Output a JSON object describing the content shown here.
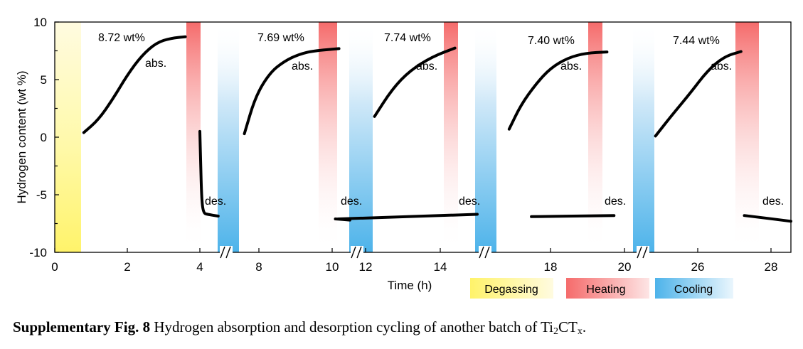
{
  "chart_data": {
    "type": "line",
    "title": "",
    "xlabel": "Time (h)",
    "ylabel": "Hydrogen content (wt %)",
    "ylim": [
      -10,
      10
    ],
    "y_ticks": [
      "10",
      "5",
      "0",
      "-5",
      "-10"
    ],
    "x_axis_segments": [
      {
        "range": [
          0,
          4.6
        ],
        "ticks": [
          "0",
          "2",
          "4"
        ]
      },
      {
        "range": [
          7.0,
          10.5
        ],
        "ticks": [
          "8",
          "10"
        ]
      },
      {
        "range": [
          11.5,
          14.5
        ],
        "ticks": [
          "12",
          "14"
        ]
      },
      {
        "range": [
          15.5,
          20.5
        ],
        "ticks": [
          "18",
          "20"
        ]
      },
      {
        "range": [
          24.5,
          28.8
        ],
        "ticks": [
          "26",
          "28"
        ]
      }
    ],
    "bands": [
      {
        "kind": "Degassing",
        "color": "#fff79a"
      },
      {
        "kind": "Heating",
        "color": "#f56b6b"
      },
      {
        "kind": "Cooling",
        "color": "#4db3ea"
      }
    ],
    "legend": [
      "Degassing",
      "Heating",
      "Cooling"
    ],
    "series": [
      {
        "name": "cycle 1 absorption",
        "x": [
          0.8,
          1.2,
          1.6,
          2.0,
          2.4,
          2.8,
          3.2,
          3.6
        ],
        "y": [
          0.4,
          1.5,
          3.3,
          5.4,
          7.1,
          8.2,
          8.6,
          8.72
        ]
      },
      {
        "name": "cycle 1 desorption",
        "x": [
          4.0,
          4.02,
          4.05,
          4.1,
          4.2,
          4.5
        ],
        "y": [
          0.5,
          -2.0,
          -5.5,
          -6.6,
          -6.7,
          -6.85
        ]
      },
      {
        "name": "cycle 2 absorption",
        "x": [
          7.6,
          7.9,
          8.3,
          8.7,
          9.1,
          9.5,
          10.2
        ],
        "y": [
          0.3,
          3.5,
          5.6,
          6.6,
          7.2,
          7.5,
          7.69
        ]
      },
      {
        "name": "cycle 2 desorption",
        "x": [
          10.1,
          10.5
        ],
        "y": [
          -7.1,
          -7.2
        ]
      },
      {
        "name": "cycle 3 absorption",
        "x": [
          12.2,
          12.6,
          13.0,
          13.5,
          14.0
        ],
        "y": [
          1.8,
          4.2,
          5.8,
          7.0,
          7.74
        ]
      },
      {
        "name": "cycle 3 desorption",
        "x": [
          14.5,
          15.2
        ],
        "y": [
          -6.7,
          -7.1
        ]
      },
      {
        "name": "cycle 4 absorption",
        "x": [
          16.6,
          17.0,
          17.5,
          18.0,
          18.5,
          19.0,
          19.6
        ],
        "y": [
          0.7,
          2.8,
          4.6,
          6.0,
          6.9,
          7.3,
          7.4
        ]
      },
      {
        "name": "cycle 4 desorption",
        "x": [
          19.8,
          21.0
        ],
        "y": [
          -6.8,
          -6.9
        ]
      },
      {
        "name": "cycle 5 absorption",
        "x": [
          24.9,
          25.3,
          25.8,
          26.3,
          26.8,
          27.3
        ],
        "y": [
          0.1,
          1.8,
          3.8,
          5.8,
          7.0,
          7.44
        ]
      },
      {
        "name": "cycle 5 desorption",
        "x": [
          27.4,
          28.8
        ],
        "y": [
          -6.8,
          -7.3
        ]
      }
    ],
    "annotations": [
      {
        "text": "8.72 wt%"
      },
      {
        "text": "abs."
      },
      {
        "text": "des."
      },
      {
        "text": "7.69 wt%"
      },
      {
        "text": "abs."
      },
      {
        "text": "des."
      },
      {
        "text": "7.74 wt%"
      },
      {
        "text": "abs."
      },
      {
        "text": "des."
      },
      {
        "text": "7.40 wt%"
      },
      {
        "text": "abs."
      },
      {
        "text": "des."
      },
      {
        "text": "7.44 wt%"
      },
      {
        "text": "abs."
      },
      {
        "text": "des."
      }
    ]
  },
  "caption": {
    "label": "Supplementary Fig. 8",
    "text": " Hydrogen absorption and desorption cycling of another batch of Ti",
    "subscript": "2",
    "text_after": "CT",
    "subscript2": "x",
    "end": "."
  }
}
